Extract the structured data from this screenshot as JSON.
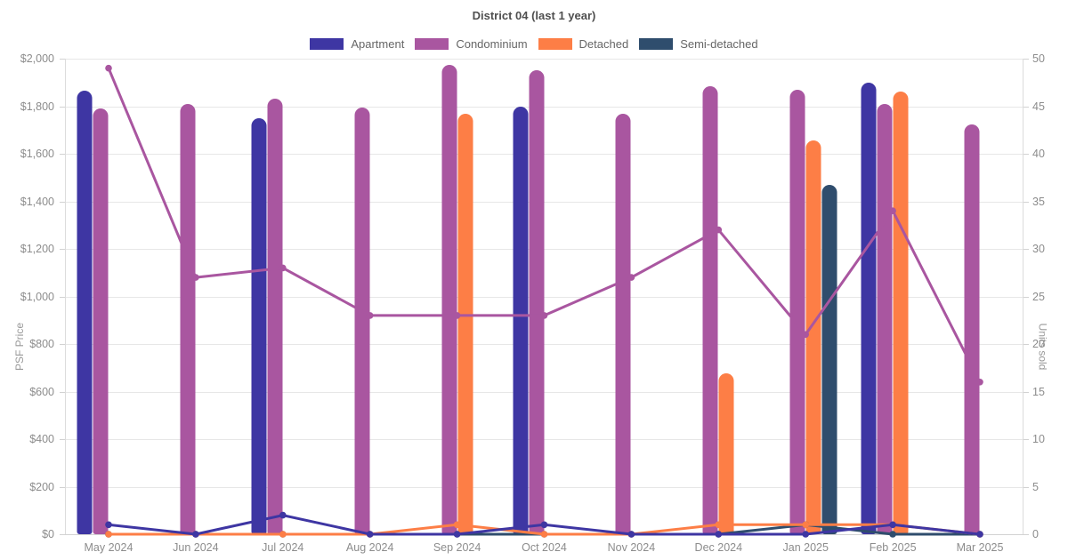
{
  "title": "District 04 (last 1 year)",
  "colors": {
    "apartment": "#3e36a3",
    "condominium": "#a956a0",
    "detached": "#fd7e46",
    "semi_detached": "#2f4d6d",
    "grid": "#e7e7e7",
    "tick_text": "#8c8c8c",
    "title_text": "#4f4f4f"
  },
  "legend": [
    {
      "label": "Apartment",
      "color": "#3e36a3"
    },
    {
      "label": "Condominium",
      "color": "#a956a0"
    },
    {
      "label": "Detached",
      "color": "#fd7e46"
    },
    {
      "label": "Semi-detached",
      "color": "#2f4d6d"
    }
  ],
  "chart_data": {
    "type": "bar",
    "note": "Bars = PSF Price (left axis); lines with point markers = Units sold (right axis)",
    "categories": [
      "May 2024",
      "Jun 2024",
      "Jul 2024",
      "Aug 2024",
      "Sep 2024",
      "Oct 2024",
      "Nov 2024",
      "Dec 2024",
      "Jan 2025",
      "Feb 2025",
      "Mar 2025"
    ],
    "bar_series": [
      {
        "name": "Apartment",
        "color": "#3e36a3",
        "values": [
          1865,
          null,
          1750,
          null,
          null,
          1800,
          null,
          null,
          null,
          1900,
          null
        ]
      },
      {
        "name": "Condominium",
        "color": "#a956a0",
        "values": [
          1790,
          1810,
          1830,
          1795,
          1975,
          1950,
          1770,
          1885,
          1870,
          1810,
          1725
        ]
      },
      {
        "name": "Detached",
        "color": "#fd7e46",
        "values": [
          null,
          null,
          null,
          null,
          1770,
          null,
          null,
          675,
          1655,
          1860,
          null
        ]
      },
      {
        "name": "Semi-detached",
        "color": "#2f4d6d",
        "values": [
          null,
          null,
          null,
          null,
          null,
          null,
          null,
          null,
          1470,
          null,
          null
        ]
      }
    ],
    "line_series": [
      {
        "name": "Condominium",
        "color": "#a956a0",
        "values": [
          49,
          27,
          28,
          23,
          23,
          23,
          27,
          32,
          21,
          34,
          16
        ]
      },
      {
        "name": "Semi-detached",
        "color": "#2f4d6d",
        "values": [
          0,
          0,
          0,
          0,
          0,
          0,
          0,
          0,
          1,
          0,
          0
        ]
      },
      {
        "name": "Detached",
        "color": "#fd7e46",
        "values": [
          0,
          0,
          0,
          0,
          1,
          0,
          0,
          1,
          1,
          1,
          0
        ]
      },
      {
        "name": "Apartment",
        "color": "#3e36a3",
        "values": [
          1,
          0,
          2,
          0,
          0,
          1,
          0,
          0,
          0,
          1,
          0
        ]
      }
    ],
    "left_axis": {
      "label": "PSF Price",
      "min": 0,
      "max": 2000,
      "step": 200,
      "tick_prefix": "$",
      "tick_labels": [
        "$0",
        "$200",
        "$400",
        "$600",
        "$800",
        "$1,000",
        "$1,200",
        "$1,400",
        "$1,600",
        "$1,800",
        "$2,000"
      ]
    },
    "right_axis": {
      "label": "Units sold",
      "min": 0,
      "max": 50,
      "step": 5,
      "tick_labels": [
        "0",
        "5",
        "10",
        "15",
        "20",
        "25",
        "30",
        "35",
        "40",
        "45",
        "50"
      ]
    },
    "grid": "horizontal-only",
    "legend_position": "top-center"
  }
}
